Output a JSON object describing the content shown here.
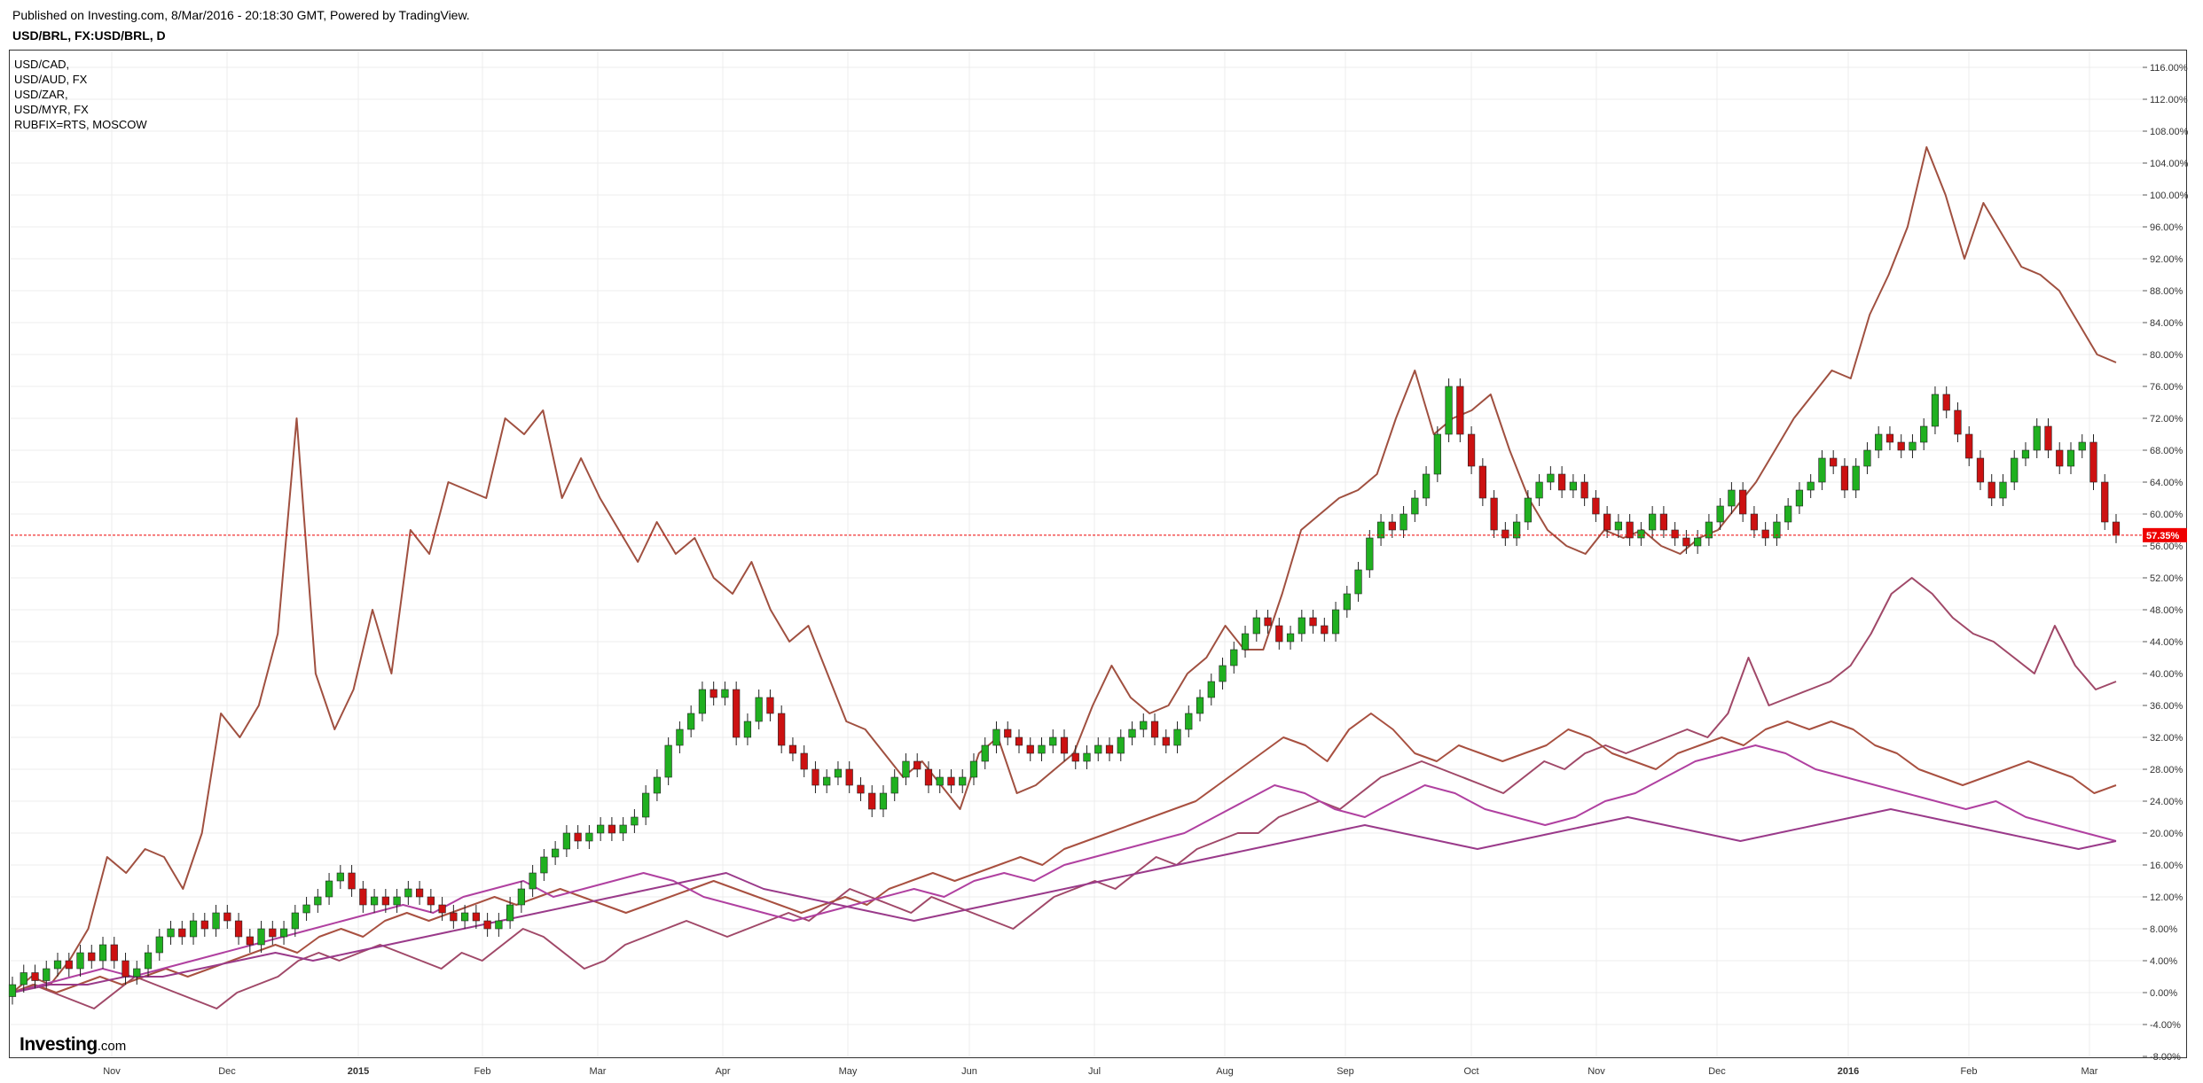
{
  "header": {
    "published": "Published on Investing.com, 8/Mar/2016 - 20:18:30 GMT, Powered by TradingView.",
    "title": "USD/BRL, FX:USD/BRL, D"
  },
  "legend": [
    "USD/CAD,",
    "USD/AUD, FX",
    "USD/ZAR,",
    "USD/MYR, FX",
    "RUBFIX=RTS, MOSCOW"
  ],
  "logo": {
    "main": "Investing",
    "sub": ".com"
  },
  "colors": {
    "up": "#20b020",
    "down": "#cc1111",
    "wick": "#222222",
    "rub": "#a05040",
    "zar": "#a04868",
    "cad": "#a85040",
    "myr": "#b040a0",
    "aud": "#9a3a8a",
    "current_marker": "#ee0000",
    "grid": "#ececec"
  },
  "chart_data": {
    "type": "line",
    "title": "USD/BRL, FX:USD/BRL, D",
    "ylabel": "",
    "xlabel": "",
    "ylim": [
      -8,
      118
    ],
    "y_unit": "%",
    "y_ticks": [
      "116.00%",
      "112.00%",
      "108.00%",
      "104.00%",
      "100.00%",
      "96.00%",
      "92.00%",
      "88.00%",
      "84.00%",
      "80.00%",
      "76.00%",
      "72.00%",
      "68.00%",
      "64.00%",
      "60.00%",
      "56.00%",
      "52.00%",
      "48.00%",
      "44.00%",
      "40.00%",
      "36.00%",
      "32.00%",
      "28.00%",
      "24.00%",
      "20.00%",
      "16.00%",
      "12.00%",
      "8.00%",
      "4.00%",
      "0.00%",
      "-4.00%",
      "-8.00%"
    ],
    "x_ticks": [
      "Nov",
      "Dec",
      "2015",
      "Feb",
      "Mar",
      "Apr",
      "May",
      "Jun",
      "Jul",
      "Aug",
      "Sep",
      "Oct",
      "Nov",
      "Dec",
      "2016",
      "Feb",
      "Mar"
    ],
    "x_ticks_bold": [
      "2015",
      "2016"
    ],
    "grid": true,
    "legend_position": "top-left",
    "current_value_label": "57.35%",
    "current_value": 57.35,
    "candles": {
      "name": "USD/BRL",
      "values": [
        [
          -0.5,
          1
        ],
        [
          1,
          2.5
        ],
        [
          2.5,
          1.5
        ],
        [
          1.5,
          3
        ],
        [
          3,
          4
        ],
        [
          4,
          3
        ],
        [
          3,
          5
        ],
        [
          5,
          4
        ],
        [
          4,
          6
        ],
        [
          6,
          4
        ],
        [
          4,
          2
        ],
        [
          2,
          3
        ],
        [
          3,
          5
        ],
        [
          5,
          7
        ],
        [
          7,
          8
        ],
        [
          8,
          7
        ],
        [
          7,
          9
        ],
        [
          9,
          8
        ],
        [
          8,
          10
        ],
        [
          10,
          9
        ],
        [
          9,
          7
        ],
        [
          7,
          6
        ],
        [
          6,
          8
        ],
        [
          8,
          7
        ],
        [
          7,
          8
        ],
        [
          8,
          10
        ],
        [
          10,
          11
        ],
        [
          11,
          12
        ],
        [
          12,
          14
        ],
        [
          14,
          15
        ],
        [
          15,
          13
        ],
        [
          13,
          11
        ],
        [
          11,
          12
        ],
        [
          12,
          11
        ],
        [
          11,
          12
        ],
        [
          12,
          13
        ],
        [
          13,
          12
        ],
        [
          12,
          11
        ],
        [
          11,
          10
        ],
        [
          10,
          9
        ],
        [
          9,
          10
        ],
        [
          10,
          9
        ],
        [
          9,
          8
        ],
        [
          8,
          9
        ],
        [
          9,
          11
        ],
        [
          11,
          13
        ],
        [
          13,
          15
        ],
        [
          15,
          17
        ],
        [
          17,
          18
        ],
        [
          18,
          20
        ],
        [
          20,
          19
        ],
        [
          19,
          20
        ],
        [
          20,
          21
        ],
        [
          21,
          20
        ],
        [
          20,
          21
        ],
        [
          21,
          22
        ],
        [
          22,
          25
        ],
        [
          25,
          27
        ],
        [
          27,
          31
        ],
        [
          31,
          33
        ],
        [
          33,
          35
        ],
        [
          35,
          38
        ],
        [
          38,
          37
        ],
        [
          37,
          38
        ],
        [
          38,
          32
        ],
        [
          32,
          34
        ],
        [
          34,
          37
        ],
        [
          37,
          35
        ],
        [
          35,
          31
        ],
        [
          31,
          30
        ],
        [
          30,
          28
        ],
        [
          28,
          26
        ],
        [
          26,
          27
        ],
        [
          27,
          28
        ],
        [
          28,
          26
        ],
        [
          26,
          25
        ],
        [
          25,
          23
        ],
        [
          23,
          25
        ],
        [
          25,
          27
        ],
        [
          27,
          29
        ],
        [
          29,
          28
        ],
        [
          28,
          26
        ],
        [
          26,
          27
        ],
        [
          27,
          26
        ],
        [
          26,
          27
        ],
        [
          27,
          29
        ],
        [
          29,
          31
        ],
        [
          31,
          33
        ],
        [
          33,
          32
        ],
        [
          32,
          31
        ],
        [
          31,
          30
        ],
        [
          30,
          31
        ],
        [
          31,
          32
        ],
        [
          32,
          30
        ],
        [
          30,
          29
        ],
        [
          29,
          30
        ],
        [
          30,
          31
        ],
        [
          31,
          30
        ],
        [
          30,
          32
        ],
        [
          32,
          33
        ],
        [
          33,
          34
        ],
        [
          34,
          32
        ],
        [
          32,
          31
        ],
        [
          31,
          33
        ],
        [
          33,
          35
        ],
        [
          35,
          37
        ],
        [
          37,
          39
        ],
        [
          39,
          41
        ],
        [
          41,
          43
        ],
        [
          43,
          45
        ],
        [
          45,
          47
        ],
        [
          47,
          46
        ],
        [
          46,
          44
        ],
        [
          44,
          45
        ],
        [
          45,
          47
        ],
        [
          47,
          46
        ],
        [
          46,
          45
        ],
        [
          45,
          48
        ],
        [
          48,
          50
        ],
        [
          50,
          53
        ],
        [
          53,
          57
        ],
        [
          57,
          59
        ],
        [
          59,
          58
        ],
        [
          58,
          60
        ],
        [
          60,
          62
        ],
        [
          62,
          65
        ],
        [
          65,
          70
        ],
        [
          70,
          76
        ],
        [
          76,
          70
        ],
        [
          70,
          66
        ],
        [
          66,
          62
        ],
        [
          62,
          58
        ],
        [
          58,
          57
        ],
        [
          57,
          59
        ],
        [
          59,
          62
        ],
        [
          62,
          64
        ],
        [
          64,
          65
        ],
        [
          65,
          63
        ],
        [
          63,
          64
        ],
        [
          64,
          62
        ],
        [
          62,
          60
        ],
        [
          60,
          58
        ],
        [
          58,
          59
        ],
        [
          59,
          57
        ],
        [
          57,
          58
        ],
        [
          58,
          60
        ],
        [
          60,
          58
        ],
        [
          58,
          57
        ],
        [
          57,
          56
        ],
        [
          56,
          57
        ],
        [
          57,
          59
        ],
        [
          59,
          61
        ],
        [
          61,
          63
        ],
        [
          63,
          60
        ],
        [
          60,
          58
        ],
        [
          58,
          57
        ],
        [
          57,
          59
        ],
        [
          59,
          61
        ],
        [
          61,
          63
        ],
        [
          63,
          64
        ],
        [
          64,
          67
        ],
        [
          67,
          66
        ],
        [
          66,
          63
        ],
        [
          63,
          66
        ],
        [
          66,
          68
        ],
        [
          68,
          70
        ],
        [
          70,
          69
        ],
        [
          69,
          68
        ],
        [
          68,
          69
        ],
        [
          69,
          71
        ],
        [
          71,
          75
        ],
        [
          75,
          73
        ],
        [
          73,
          70
        ],
        [
          70,
          67
        ],
        [
          67,
          64
        ],
        [
          64,
          62
        ],
        [
          62,
          64
        ],
        [
          64,
          67
        ],
        [
          67,
          68
        ],
        [
          68,
          71
        ],
        [
          71,
          68
        ],
        [
          68,
          66
        ],
        [
          66,
          68
        ],
        [
          68,
          69
        ],
        [
          69,
          64
        ],
        [
          64,
          59
        ],
        [
          59,
          57.35
        ]
      ]
    },
    "series": [
      {
        "name": "RUBFIX=RTS, MOSCOW",
        "values": [
          0,
          2,
          1,
          4,
          8,
          17,
          15,
          18,
          17,
          13,
          20,
          35,
          32,
          36,
          45,
          72,
          40,
          33,
          38,
          48,
          40,
          58,
          55,
          64,
          63,
          62,
          72,
          70,
          73,
          62,
          67,
          62,
          58,
          54,
          59,
          55,
          57,
          52,
          50,
          54,
          48,
          44,
          46,
          40,
          34,
          33,
          30,
          27,
          29,
          26,
          23,
          30,
          32,
          25,
          26,
          28,
          30,
          36,
          41,
          37,
          35,
          36,
          40,
          42,
          46,
          43,
          43,
          50,
          58,
          60,
          62,
          63,
          65,
          72,
          78,
          70,
          72,
          73,
          75,
          68,
          62,
          58,
          56,
          55,
          58,
          57,
          58,
          56,
          55,
          57,
          58,
          61,
          64,
          68,
          72,
          75,
          78,
          77,
          85,
          90,
          96,
          106,
          100,
          92,
          99,
          95,
          91,
          90,
          88,
          84,
          80,
          79
        ]
      },
      {
        "name": "USD/ZAR",
        "values": [
          0,
          1,
          0,
          -1,
          -2,
          0,
          2,
          1,
          0,
          -1,
          -2,
          0,
          1,
          2,
          4,
          5,
          4,
          5,
          6,
          5,
          4,
          3,
          5,
          4,
          6,
          8,
          7,
          5,
          3,
          4,
          6,
          7,
          8,
          9,
          8,
          7,
          8,
          9,
          10,
          9,
          11,
          13,
          12,
          11,
          10,
          12,
          11,
          10,
          9,
          8,
          10,
          12,
          13,
          14,
          13,
          15,
          17,
          16,
          18,
          19,
          20,
          20,
          22,
          23,
          24,
          23,
          25,
          27,
          28,
          29,
          28,
          27,
          26,
          25,
          27,
          29,
          28,
          30,
          31,
          30,
          31,
          32,
          33,
          32,
          35,
          42,
          36,
          37,
          38,
          39,
          41,
          45,
          50,
          52,
          50,
          47,
          45,
          44,
          42,
          40,
          46,
          41,
          38,
          39
        ]
      },
      {
        "name": "USD/CAD",
        "values": [
          0,
          1,
          0,
          1,
          2,
          1,
          2,
          3,
          2,
          3,
          4,
          5,
          6,
          5,
          7,
          8,
          7,
          9,
          10,
          9,
          10,
          11,
          12,
          11,
          12,
          13,
          12,
          11,
          10,
          11,
          12,
          13,
          14,
          13,
          12,
          11,
          10,
          11,
          12,
          11,
          13,
          14,
          15,
          14,
          15,
          16,
          17,
          16,
          18,
          19,
          20,
          21,
          22,
          23,
          24,
          26,
          28,
          30,
          32,
          31,
          29,
          33,
          35,
          33,
          30,
          29,
          31,
          30,
          29,
          30,
          31,
          33,
          32,
          30,
          29,
          28,
          30,
          31,
          32,
          31,
          33,
          34,
          33,
          34,
          33,
          31,
          30,
          28,
          27,
          26,
          27,
          28,
          29,
          28,
          27,
          25,
          26
        ]
      },
      {
        "name": "USD/MYR",
        "values": [
          0,
          1,
          2,
          3,
          2,
          3,
          4,
          5,
          6,
          7,
          8,
          9,
          10,
          11,
          10,
          12,
          13,
          14,
          12,
          13,
          14,
          15,
          14,
          12,
          11,
          10,
          9,
          10,
          11,
          12,
          13,
          12,
          14,
          15,
          14,
          16,
          17,
          18,
          19,
          20,
          22,
          24,
          26,
          25,
          23,
          22,
          24,
          26,
          25,
          23,
          22,
          21,
          22,
          24,
          25,
          27,
          29,
          30,
          31,
          30,
          28,
          27,
          26,
          25,
          24,
          23,
          24,
          22,
          21,
          20,
          19
        ]
      },
      {
        "name": "USD/AUD, FX",
        "values": [
          0,
          1,
          1,
          2,
          2,
          3,
          4,
          5,
          4,
          5,
          6,
          7,
          8,
          9,
          10,
          11,
          12,
          13,
          14,
          15,
          13,
          12,
          11,
          10,
          9,
          10,
          11,
          12,
          13,
          14,
          15,
          16,
          17,
          18,
          19,
          20,
          21,
          20,
          19,
          18,
          19,
          20,
          21,
          22,
          21,
          20,
          19,
          20,
          21,
          22,
          23,
          22,
          21,
          20,
          19,
          18,
          19
        ]
      }
    ]
  }
}
